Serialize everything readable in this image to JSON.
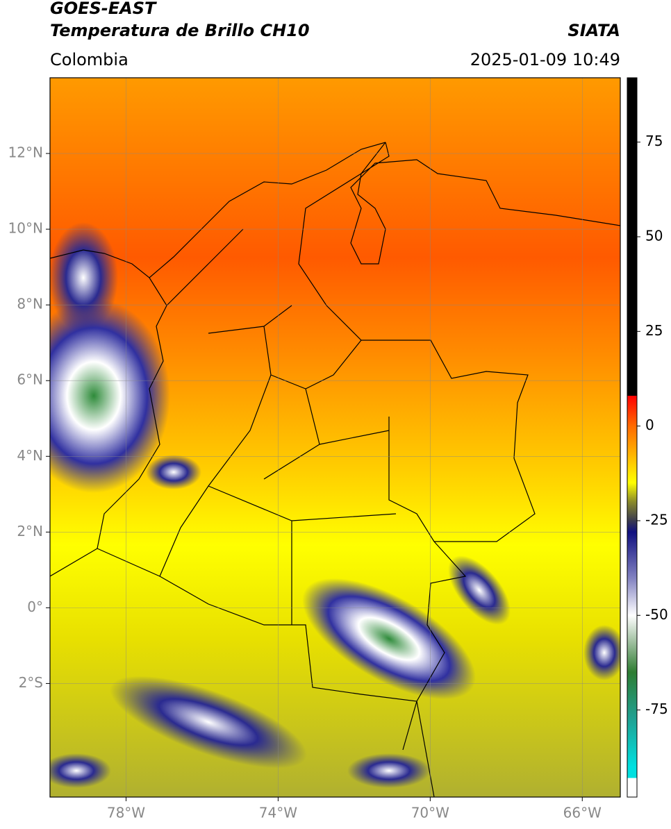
{
  "header": {
    "satellite": "GOES-EAST",
    "product": "Temperatura de Brillo CH10",
    "source": "SIATA",
    "region": "Colombia",
    "timestamp": "2025-01-09 10:49"
  },
  "chart_data": {
    "type": "map",
    "xlim": [
      -80,
      -65
    ],
    "ylim": [
      -5,
      14
    ],
    "xticks": [
      {
        "value": -78,
        "label": "78°W"
      },
      {
        "value": -74,
        "label": "74°W"
      },
      {
        "value": -70,
        "label": "70°W"
      },
      {
        "value": -66,
        "label": "66°W"
      }
    ],
    "yticks": [
      {
        "value": 12,
        "label": "12°N"
      },
      {
        "value": 10,
        "label": "10°N"
      },
      {
        "value": 8,
        "label": "8°N"
      },
      {
        "value": 6,
        "label": "6°N"
      },
      {
        "value": 4,
        "label": "4°N"
      },
      {
        "value": 2,
        "label": "2°N"
      },
      {
        "value": 0,
        "label": "0°"
      },
      {
        "value": -2,
        "label": "2°S"
      }
    ],
    "grid": true,
    "colorbar": {
      "lim": [
        -98,
        92
      ],
      "ticks": [
        75,
        50,
        25,
        0,
        -25,
        -50,
        -75
      ],
      "colormap": [
        {
          "value": 92,
          "color": "#000000"
        },
        {
          "value": 8,
          "color": "#000000"
        },
        {
          "value": 8,
          "color": "#ff0000"
        },
        {
          "value": 0,
          "color": "#ff6a00"
        },
        {
          "value": -15,
          "color": "#ffff00"
        },
        {
          "value": -20,
          "color": "#8a8a2a"
        },
        {
          "value": -25,
          "color": "#3a3a50"
        },
        {
          "value": -28,
          "color": "#101080"
        },
        {
          "value": -40,
          "color": "#8080c0"
        },
        {
          "value": -50,
          "color": "#ffffff"
        },
        {
          "value": -57,
          "color": "#a0c0a0"
        },
        {
          "value": -65,
          "color": "#2e7d32"
        },
        {
          "value": -77,
          "color": "#20a090"
        },
        {
          "value": -90,
          "color": "#00e0e0"
        },
        {
          "value": -93,
          "color": "#00e0e0"
        },
        {
          "value": -93,
          "color": "#ffffff"
        },
        {
          "value": -98,
          "color": "#ffffff"
        }
      ]
    }
  }
}
